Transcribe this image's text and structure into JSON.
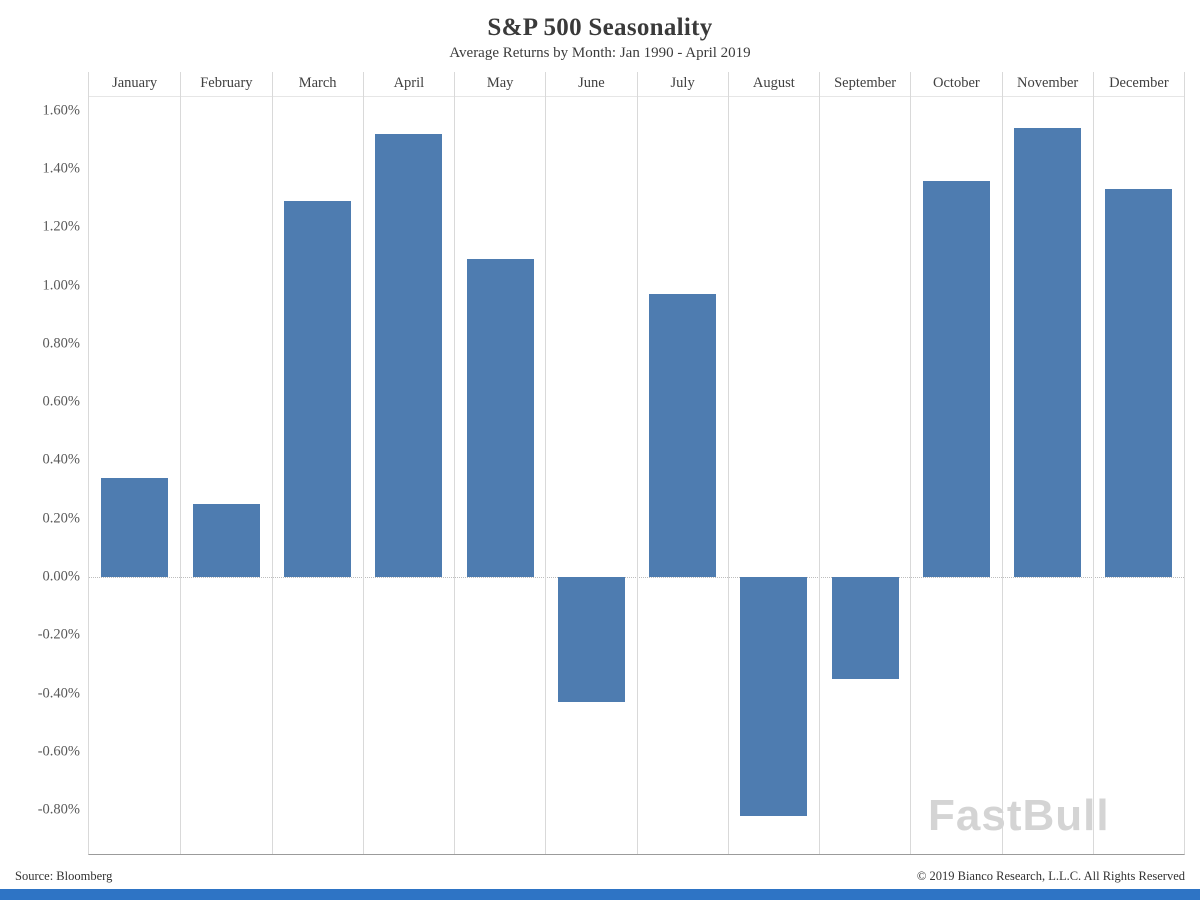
{
  "chart": {
    "title": "S&P 500 Seasonality",
    "subtitle": "Average Returns by Month: Jan 1990 - April 2019"
  },
  "footer": {
    "source": "Source: Bloomberg",
    "copyright": "© 2019 Bianco Research, L.L.C. All Rights Reserved"
  },
  "watermark": "FastBull",
  "colors": {
    "bar": "#4e7cb0",
    "grid": "#d9d9d9",
    "zero_line": "#bdbdbd",
    "axis_line": "#9b9b9b",
    "bottom_strip": "#2e74c5",
    "watermark": "#d4d4d4"
  },
  "chart_data": {
    "type": "bar",
    "title": "S&P 500 Seasonality",
    "subtitle": "Average Returns by Month: Jan 1990 - April 2019",
    "xlabel": "",
    "ylabel": "",
    "categories": [
      "January",
      "February",
      "March",
      "April",
      "May",
      "June",
      "July",
      "August",
      "September",
      "October",
      "November",
      "December"
    ],
    "values": [
      0.34,
      0.25,
      1.29,
      1.52,
      1.09,
      -0.43,
      0.97,
      -0.82,
      -0.35,
      1.36,
      1.54,
      1.33
    ],
    "ylim": [
      -0.95,
      1.65
    ],
    "yticks": [
      {
        "value": 1.6,
        "label": "1.60%"
      },
      {
        "value": 1.4,
        "label": "1.40%"
      },
      {
        "value": 1.2,
        "label": "1.20%"
      },
      {
        "value": 1.0,
        "label": "1.00%"
      },
      {
        "value": 0.8,
        "label": "0.80%"
      },
      {
        "value": 0.6,
        "label": "0.60%"
      },
      {
        "value": 0.4,
        "label": "0.40%"
      },
      {
        "value": 0.2,
        "label": "0.20%"
      },
      {
        "value": 0.0,
        "label": "0.00%"
      },
      {
        "value": -0.2,
        "label": "-0.20%"
      },
      {
        "value": -0.4,
        "label": "-0.40%"
      },
      {
        "value": -0.6,
        "label": "-0.60%"
      },
      {
        "value": -0.8,
        "label": "-0.80%"
      }
    ],
    "grid": "vertical-column-separators",
    "zero_line": "dotted",
    "legend": "none"
  }
}
